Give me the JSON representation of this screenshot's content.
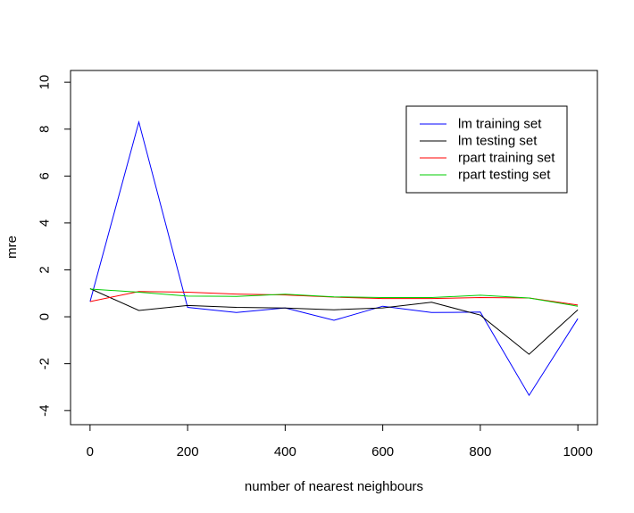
{
  "chart_data": {
    "type": "line",
    "title": "",
    "xlabel": "number of nearest neighbours",
    "ylabel": "mre",
    "xlim": [
      -40,
      1040
    ],
    "ylim": [
      -4.6,
      10.5
    ],
    "xticks": [
      0,
      200,
      400,
      600,
      800,
      1000
    ],
    "yticks": [
      -4,
      -2,
      0,
      2,
      4,
      6,
      8,
      10
    ],
    "grid": false,
    "legend_position": "top-right",
    "x": [
      0,
      100,
      200,
      300,
      400,
      500,
      600,
      700,
      800,
      900,
      1000
    ],
    "series": [
      {
        "name": "lm training set",
        "color": "#0000ff",
        "values": [
          0.65,
          8.3,
          0.4,
          0.18,
          0.38,
          -0.15,
          0.45,
          0.18,
          0.2,
          -3.35,
          -0.08
        ]
      },
      {
        "name": "lm testing set",
        "color": "#000000",
        "values": [
          1.2,
          0.27,
          0.48,
          0.4,
          0.37,
          0.3,
          0.38,
          0.62,
          0.07,
          -1.6,
          0.3
        ]
      },
      {
        "name": "rpart training set",
        "color": "#ff0000",
        "values": [
          0.65,
          1.08,
          1.05,
          0.97,
          0.93,
          0.84,
          0.78,
          0.78,
          0.82,
          0.8,
          0.5
        ]
      },
      {
        "name": "rpart testing set",
        "color": "#00cd00",
        "values": [
          1.18,
          1.05,
          0.88,
          0.87,
          0.96,
          0.85,
          0.82,
          0.82,
          0.92,
          0.8,
          0.45
        ]
      }
    ]
  }
}
